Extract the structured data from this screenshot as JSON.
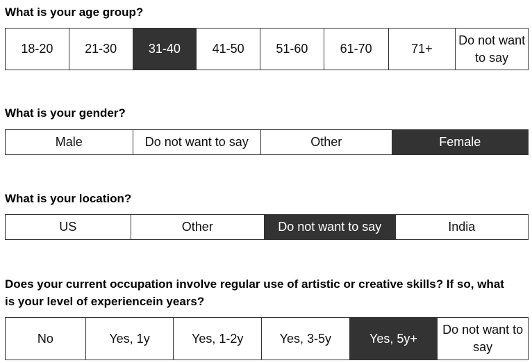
{
  "questions": [
    {
      "title": "What is your age group?",
      "options": [
        "18-20",
        "21-30",
        "31-40",
        "41-50",
        "51-60",
        "61-70",
        "71+",
        "Do not want to say"
      ],
      "selected": "31-40"
    },
    {
      "title": "What is your gender?",
      "options": [
        "Male",
        "Do not want to say",
        "Other",
        "Female"
      ],
      "selected": "Female"
    },
    {
      "title": "What is your location?",
      "options": [
        "US",
        "Other",
        "Do not want to say",
        "India"
      ],
      "selected": "Do not want to say"
    },
    {
      "title": "Does your current occupation involve regular use of artistic or creative skills? If so, what is your level of experiencein years?",
      "options": [
        "No",
        "Yes, 1y",
        "Yes, 1-2y",
        "Yes, 3-5y",
        "Yes, 5y+",
        "Do not want to say"
      ],
      "selected": "Yes, 5y+"
    }
  ],
  "colors": {
    "selected_bg": "#333333",
    "selected_text": "#ffffff",
    "border": "#333333"
  }
}
